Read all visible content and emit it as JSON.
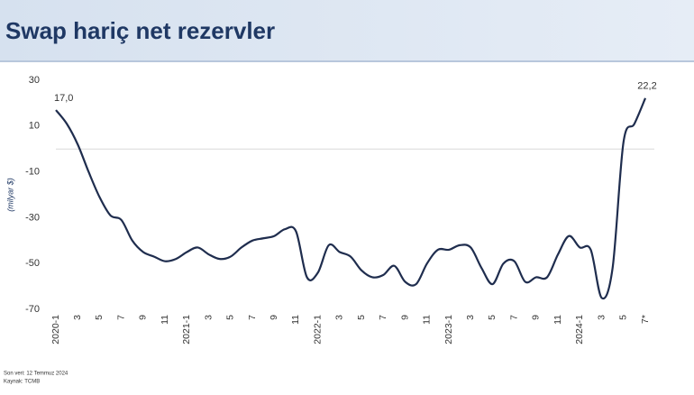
{
  "chart_data": {
    "type": "line",
    "title": "Swap hariç net rezervler",
    "y_label": "(milyar $)",
    "categories": [
      "2020-1",
      null,
      "3",
      null,
      "5",
      null,
      "7",
      null,
      "9",
      null,
      "11",
      null,
      "2021-1",
      null,
      "3",
      null,
      "5",
      null,
      "7",
      null,
      "9",
      null,
      "11",
      null,
      "2022-1",
      null,
      "3",
      null,
      "5",
      null,
      "7",
      null,
      "9",
      null,
      "11",
      null,
      "2023-1",
      null,
      "3",
      null,
      "5",
      null,
      "7",
      null,
      "9",
      null,
      "11",
      null,
      "2024-1",
      null,
      "3",
      null,
      "5",
      null,
      "7*"
    ],
    "series": [
      {
        "name": "Swap hariç net rezervler",
        "color": "#1f2d4e",
        "values": [
          17.0,
          11,
          2,
          -10,
          -21,
          -29,
          -31,
          -40,
          -45,
          -47,
          -49,
          -48,
          -45,
          -43,
          -46,
          -48,
          -47,
          -43,
          -40,
          -39,
          -38,
          -35,
          -36,
          -56,
          -54,
          -42,
          -45,
          -47,
          -53,
          -56,
          -55,
          -51,
          -58,
          -59,
          -50,
          -44,
          -44,
          -42,
          -43,
          -52,
          -59,
          -50,
          -49,
          -58,
          -56,
          -56,
          -46,
          -38,
          -43,
          -44,
          -65,
          -52,
          3,
          11,
          22.2
        ],
        "value_labels": [
          "17,0",
          null,
          null,
          null,
          null,
          null,
          null,
          null,
          null,
          null,
          null,
          null,
          null,
          null,
          null,
          null,
          null,
          null,
          null,
          null,
          null,
          null,
          null,
          null,
          null,
          null,
          null,
          null,
          null,
          null,
          null,
          null,
          null,
          null,
          null,
          null,
          null,
          null,
          null,
          null,
          null,
          null,
          null,
          null,
          null,
          null,
          null,
          null,
          null,
          null,
          null,
          null,
          null,
          null,
          "22,2"
        ]
      }
    ],
    "ylim": [
      -70,
      30
    ],
    "yticks": [
      30,
      10,
      -10,
      -30,
      -50,
      -70
    ],
    "zero_line": true,
    "notes": [
      "Son veri: 12 Temmuz 2024",
      "Kaynak: TCMB"
    ]
  }
}
